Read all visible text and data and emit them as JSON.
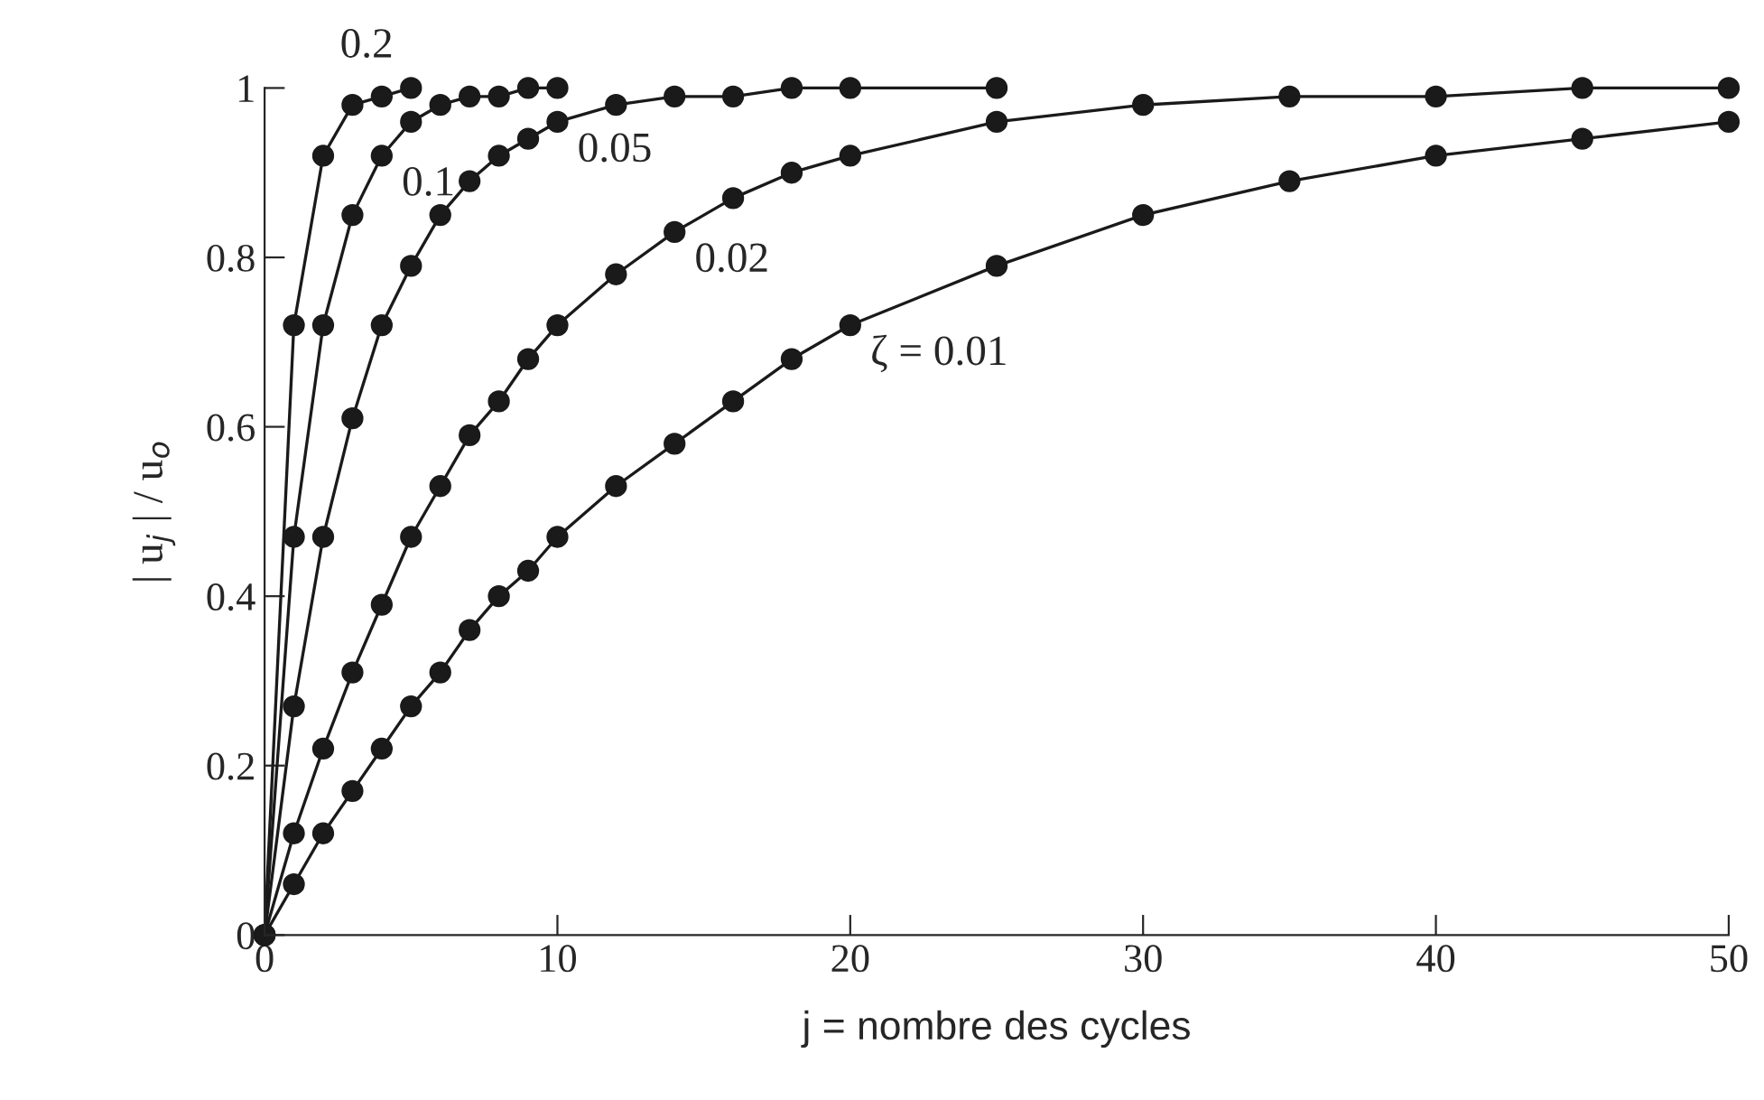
{
  "chart_data": {
    "type": "line",
    "xlabel": "j = nombre des cycles",
    "ylabel": "| u$_{j}$ | / u$_{o}$",
    "xlim": [
      0,
      50
    ],
    "ylim": [
      0,
      1
    ],
    "xticks": [
      0,
      10,
      20,
      30,
      40,
      50
    ],
    "yticks": [
      0,
      0.2,
      0.4,
      0.6,
      0.8,
      1
    ],
    "grid": false,
    "marker": "circle",
    "line_style": "solid",
    "series": [
      {
        "color": "#1a1a1a",
        "x": [
          0,
          1,
          2,
          3,
          4,
          5
        ],
        "values": [
          0,
          0.72,
          0.92,
          0.98,
          0.99,
          1.0
        ]
      },
      {
        "color": "#1a1a1a",
        "x": [
          0,
          1,
          2,
          3,
          4,
          5,
          6,
          7,
          8,
          9,
          10
        ],
        "values": [
          0,
          0.47,
          0.72,
          0.85,
          0.92,
          0.96,
          0.98,
          0.99,
          0.99,
          1.0,
          1.0
        ]
      },
      {
        "color": "#1a1a1a",
        "x": [
          0,
          1,
          2,
          3,
          4,
          5,
          6,
          7,
          8,
          9,
          10,
          12,
          14,
          16,
          18,
          20,
          25
        ],
        "values": [
          0,
          0.27,
          0.47,
          0.61,
          0.72,
          0.79,
          0.85,
          0.89,
          0.92,
          0.94,
          0.96,
          0.98,
          0.99,
          0.99,
          1.0,
          1.0,
          1.0
        ]
      },
      {
        "color": "#1a1a1a",
        "x": [
          0,
          1,
          2,
          3,
          4,
          5,
          6,
          7,
          8,
          9,
          10,
          12,
          14,
          16,
          18,
          20,
          25,
          30,
          35,
          40,
          45,
          50
        ],
        "values": [
          0,
          0.12,
          0.22,
          0.31,
          0.39,
          0.47,
          0.53,
          0.59,
          0.63,
          0.68,
          0.72,
          0.78,
          0.83,
          0.87,
          0.9,
          0.92,
          0.96,
          0.98,
          0.99,
          0.99,
          1.0,
          1.0
        ]
      },
      {
        "color": "#1a1a1a",
        "x": [
          0,
          1,
          2,
          3,
          4,
          5,
          6,
          7,
          8,
          9,
          10,
          12,
          14,
          16,
          18,
          20,
          25,
          30,
          35,
          40,
          45,
          50
        ],
        "values": [
          0,
          0.06,
          0.12,
          0.17,
          0.22,
          0.27,
          0.31,
          0.36,
          0.4,
          0.43,
          0.47,
          0.53,
          0.58,
          0.63,
          0.68,
          0.72,
          0.79,
          0.85,
          0.89,
          0.92,
          0.94,
          0.96
        ]
      }
    ],
    "annotations": [
      {
        "text": "0.2",
        "x": 4,
        "y": 0.99
      },
      {
        "text": "0.1",
        "x": 4,
        "y": 0.92
      },
      {
        "text": "0.05",
        "x": 10,
        "y": 0.96
      },
      {
        "text": "0.02",
        "x": 14,
        "y": 0.83
      },
      {
        "text": "ζ = 0.01",
        "x": 20,
        "y": 0.72
      }
    ]
  }
}
